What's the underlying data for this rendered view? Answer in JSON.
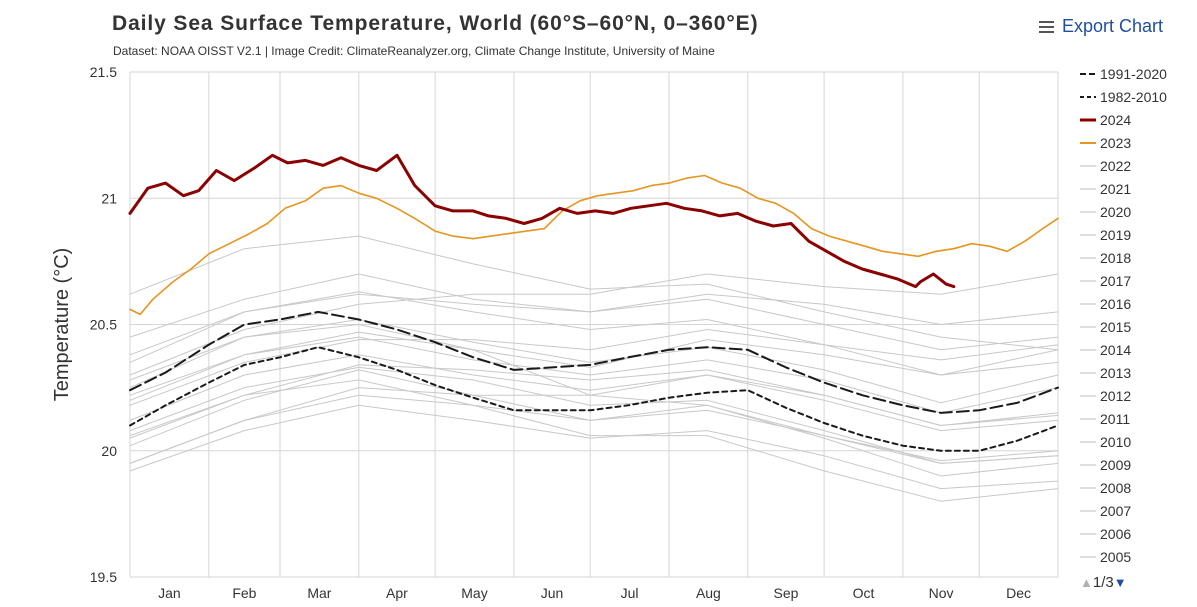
{
  "header": {
    "title": "Daily Sea Surface Temperature, World (60°S–60°N, 0–360°E)",
    "subtitle": "Dataset: NOAA OISST V2.1 | Image Credit: ClimateReanalyzer.org, Climate Change Institute, University of Maine",
    "export_label": "Export Chart"
  },
  "legend_pager": {
    "text": "1/3",
    "up_icon": "triangle-up-icon",
    "down_icon": "triangle-down-icon"
  },
  "colors": {
    "year_2024": "#8b0000",
    "year_2023": "#e69520",
    "climatology": "#1a1a1a",
    "other_years": "#c8c8c8",
    "grid": "#d6d6d6"
  },
  "chart_data": {
    "type": "line",
    "title": "Daily Sea Surface Temperature, World (60°S–60°N, 0–360°E)",
    "subtitle": "Dataset: NOAA OISST V2.1 | Image Credit: ClimateReanalyzer.org, Climate Change Institute, University of Maine",
    "ylabel": "Temperature (°C)",
    "xlabel": "",
    "ylim": [
      19.5,
      21.5
    ],
    "yticks": [
      19.5,
      20,
      20.5,
      21,
      21.5
    ],
    "xlim": [
      1,
      366
    ],
    "month_labels": [
      "Jan",
      "Feb",
      "Mar",
      "Apr",
      "May",
      "Jun",
      "Jul",
      "Aug",
      "Sep",
      "Oct",
      "Nov",
      "Dec"
    ],
    "grid": true,
    "legend_position": "right",
    "series": [
      {
        "name": "1991-2020",
        "style": "dashed-long",
        "color": "#1a1a1a",
        "x": [
          1,
          15,
          32,
          46,
          60,
          75,
          91,
          106,
          121,
          136,
          152,
          167,
          182,
          197,
          213,
          228,
          244,
          259,
          274,
          289,
          305,
          320,
          335,
          350,
          366
        ],
        "y": [
          20.24,
          20.31,
          20.42,
          20.5,
          20.52,
          20.55,
          20.52,
          20.48,
          20.43,
          20.37,
          20.32,
          20.33,
          20.34,
          20.37,
          20.4,
          20.41,
          20.4,
          20.33,
          20.27,
          20.22,
          20.18,
          20.15,
          20.16,
          20.19,
          20.25
        ]
      },
      {
        "name": "1982-2010",
        "style": "dashed-short",
        "color": "#1a1a1a",
        "x": [
          1,
          15,
          32,
          46,
          60,
          75,
          91,
          106,
          121,
          136,
          152,
          167,
          182,
          197,
          213,
          228,
          244,
          259,
          274,
          289,
          305,
          320,
          335,
          350,
          366
        ],
        "y": [
          20.1,
          20.18,
          20.27,
          20.34,
          20.37,
          20.41,
          20.37,
          20.32,
          20.26,
          20.21,
          20.16,
          20.16,
          20.16,
          20.18,
          20.21,
          20.23,
          20.24,
          20.17,
          20.11,
          20.06,
          20.02,
          20.0,
          20.0,
          20.04,
          20.1
        ]
      },
      {
        "name": "2024",
        "color": "#8b0000",
        "x": [
          1,
          8,
          15,
          22,
          28,
          35,
          42,
          50,
          57,
          63,
          70,
          77,
          84,
          91,
          98,
          106,
          113,
          121,
          128,
          136,
          142,
          149,
          156,
          163,
          170,
          177,
          184,
          191,
          198,
          205,
          212,
          219,
          226,
          233,
          240,
          247,
          254,
          261,
          268,
          275,
          282,
          289,
          296,
          303,
          310,
          312,
          317,
          322,
          325
        ],
        "y": [
          20.94,
          21.04,
          21.06,
          21.01,
          21.03,
          21.11,
          21.07,
          21.12,
          21.17,
          21.14,
          21.15,
          21.13,
          21.16,
          21.13,
          21.11,
          21.17,
          21.05,
          20.97,
          20.95,
          20.95,
          20.93,
          20.92,
          20.9,
          20.92,
          20.96,
          20.94,
          20.95,
          20.94,
          20.96,
          20.97,
          20.98,
          20.96,
          20.95,
          20.93,
          20.94,
          20.91,
          20.89,
          20.9,
          20.83,
          20.79,
          20.75,
          20.72,
          20.7,
          20.68,
          20.65,
          20.67,
          20.7,
          20.66,
          20.65
        ]
      },
      {
        "name": "2023",
        "color": "#e69520",
        "x": [
          1,
          5,
          10,
          18,
          25,
          32,
          40,
          48,
          55,
          62,
          70,
          77,
          84,
          91,
          98,
          106,
          113,
          121,
          128,
          136,
          143,
          150,
          157,
          164,
          171,
          178,
          185,
          192,
          199,
          206,
          213,
          220,
          227,
          234,
          241,
          248,
          255,
          262,
          269,
          276,
          283,
          290,
          297,
          304,
          311,
          318,
          325,
          332,
          339,
          346,
          353,
          360,
          366
        ],
        "y": [
          20.56,
          20.54,
          20.6,
          20.67,
          20.72,
          20.78,
          20.82,
          20.86,
          20.9,
          20.96,
          20.99,
          21.04,
          21.05,
          21.02,
          21.0,
          20.96,
          20.92,
          20.87,
          20.85,
          20.84,
          20.85,
          20.86,
          20.87,
          20.88,
          20.95,
          20.99,
          21.01,
          21.02,
          21.03,
          21.05,
          21.06,
          21.08,
          21.09,
          21.06,
          21.04,
          21.0,
          20.98,
          20.94,
          20.88,
          20.85,
          20.83,
          20.81,
          20.79,
          20.78,
          20.77,
          20.79,
          20.8,
          20.82,
          20.81,
          20.79,
          20.83,
          20.88,
          20.92
        ]
      },
      {
        "name": "2022",
        "color": "#c8c8c8",
        "x": [
          1,
          46,
          91,
          136,
          182,
          228,
          274,
          320,
          366
        ],
        "y": [
          20.22,
          20.38,
          20.45,
          20.36,
          20.3,
          20.36,
          20.28,
          20.15,
          20.25
        ]
      },
      {
        "name": "2021",
        "color": "#c8c8c8",
        "x": [
          1,
          46,
          91,
          136,
          182,
          228,
          274,
          320,
          366
        ],
        "y": [
          20.28,
          20.45,
          20.52,
          20.43,
          20.35,
          20.41,
          20.32,
          20.19,
          20.3
        ]
      },
      {
        "name": "2020",
        "color": "#c8c8c8",
        "x": [
          1,
          46,
          91,
          136,
          182,
          228,
          274,
          320,
          366
        ],
        "y": [
          20.45,
          20.6,
          20.7,
          20.6,
          20.55,
          20.6,
          20.5,
          20.4,
          20.45
        ]
      },
      {
        "name": "2019",
        "color": "#c8c8c8",
        "x": [
          1,
          46,
          91,
          136,
          182,
          228,
          274,
          320,
          366
        ],
        "y": [
          20.35,
          20.55,
          20.62,
          20.58,
          20.55,
          20.62,
          20.58,
          20.5,
          20.55
        ]
      },
      {
        "name": "2018",
        "color": "#c8c8c8",
        "x": [
          1,
          46,
          91,
          136,
          182,
          228,
          274,
          320,
          366
        ],
        "y": [
          20.2,
          20.38,
          20.47,
          20.4,
          20.33,
          20.44,
          20.38,
          20.3,
          20.4
        ]
      },
      {
        "name": "2017",
        "color": "#c8c8c8",
        "x": [
          1,
          46,
          91,
          136,
          182,
          228,
          274,
          320,
          366
        ],
        "y": [
          20.38,
          20.55,
          20.63,
          20.55,
          20.48,
          20.52,
          20.42,
          20.3,
          20.35
        ]
      },
      {
        "name": "2016",
        "color": "#c8c8c8",
        "x": [
          1,
          46,
          91,
          136,
          182,
          228,
          274,
          320,
          366
        ],
        "y": [
          20.62,
          20.8,
          20.85,
          20.74,
          20.64,
          20.66,
          20.55,
          20.45,
          20.4
        ]
      },
      {
        "name": "2015",
        "color": "#c8c8c8",
        "x": [
          1,
          46,
          91,
          136,
          182,
          228,
          274,
          320,
          366
        ],
        "y": [
          20.3,
          20.48,
          20.58,
          20.62,
          20.62,
          20.7,
          20.65,
          20.62,
          20.7
        ]
      },
      {
        "name": "2014",
        "color": "#c8c8c8",
        "x": [
          1,
          46,
          91,
          136,
          182,
          228,
          274,
          320,
          366
        ],
        "y": [
          20.18,
          20.35,
          20.44,
          20.44,
          20.4,
          20.48,
          20.42,
          20.36,
          20.42
        ]
      },
      {
        "name": "2013",
        "color": "#c8c8c8",
        "x": [
          1,
          46,
          91,
          136,
          182,
          228,
          274,
          320,
          366
        ],
        "y": [
          20.12,
          20.3,
          20.38,
          20.3,
          20.24,
          20.3,
          20.22,
          20.1,
          20.14
        ]
      },
      {
        "name": "2012",
        "color": "#c8c8c8",
        "x": [
          1,
          46,
          91,
          136,
          182,
          228,
          274,
          320,
          366
        ],
        "y": [
          20.06,
          20.22,
          20.34,
          20.32,
          20.28,
          20.32,
          20.22,
          20.1,
          20.15
        ]
      },
      {
        "name": "2011",
        "color": "#c8c8c8",
        "x": [
          1,
          46,
          91,
          136,
          182,
          228,
          274,
          320,
          366
        ],
        "y": [
          20.02,
          20.2,
          20.32,
          20.22,
          20.12,
          20.18,
          20.06,
          19.96,
          20.0
        ]
      },
      {
        "name": "2010",
        "color": "#c8c8c8",
        "x": [
          1,
          46,
          91,
          136,
          182,
          228,
          274,
          320,
          366
        ],
        "y": [
          20.25,
          20.45,
          20.5,
          20.4,
          20.22,
          20.18,
          20.05,
          19.9,
          19.95
        ]
      },
      {
        "name": "2009",
        "color": "#c8c8c8",
        "x": [
          1,
          46,
          91,
          136,
          182,
          228,
          274,
          320,
          366
        ],
        "y": [
          19.95,
          20.12,
          20.25,
          20.22,
          20.22,
          20.3,
          20.2,
          20.08,
          20.12
        ]
      },
      {
        "name": "2008",
        "color": "#c8c8c8",
        "x": [
          1,
          46,
          91,
          136,
          182,
          228,
          274,
          320,
          366
        ],
        "y": [
          19.92,
          20.08,
          20.18,
          20.12,
          20.05,
          20.08,
          19.98,
          19.85,
          19.88
        ]
      },
      {
        "name": "2007",
        "color": "#c8c8c8",
        "x": [
          1,
          46,
          91,
          136,
          182,
          228,
          274,
          320,
          366
        ],
        "y": [
          20.05,
          20.22,
          20.28,
          20.18,
          20.06,
          20.06,
          19.92,
          19.8,
          19.85
        ]
      },
      {
        "name": "2006",
        "color": "#c8c8c8",
        "x": [
          1,
          46,
          91,
          136,
          182,
          228,
          274,
          320,
          366
        ],
        "y": [
          19.95,
          20.12,
          20.22,
          20.18,
          20.12,
          20.16,
          20.06,
          19.95,
          19.98
        ]
      },
      {
        "name": "2005",
        "color": "#c8c8c8",
        "x": [
          1,
          46,
          91,
          136,
          182,
          228,
          274,
          320,
          366
        ],
        "y": [
          20.08,
          20.25,
          20.33,
          20.28,
          20.18,
          20.2,
          20.08,
          19.95,
          19.98
        ]
      }
    ]
  }
}
